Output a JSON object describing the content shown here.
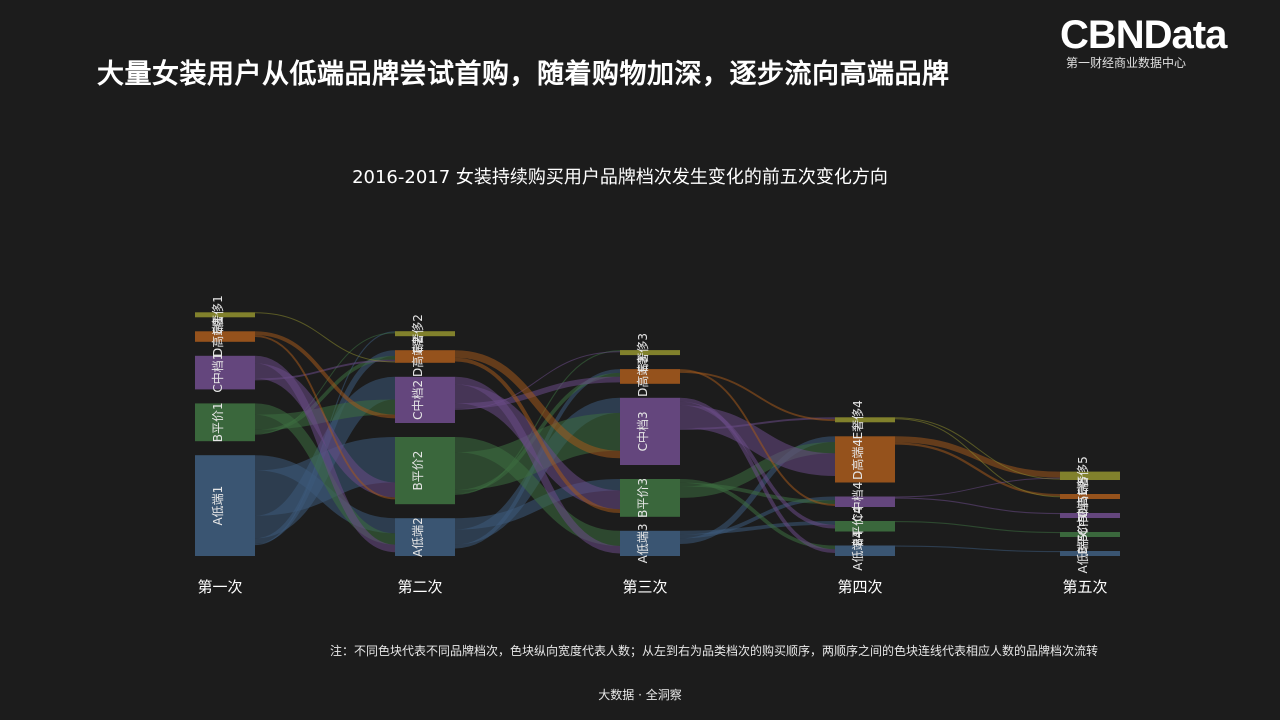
{
  "page": {
    "headline": "大量女装用户从低端品牌尝试首购，随着购物加深，逐步流向高端品牌",
    "logo_main": "CBNData",
    "logo_sub": "第一财经商业数据中心",
    "footnote": "注：不同色块代表不同品牌档次，色块纵向宽度代表人数；从左到右为品类档次的购买顺序，两顺序之间的色块连线代表相应人数的品牌档次流转",
    "footer": "大数据 · 全洞察"
  },
  "chart_data": {
    "type": "sankey",
    "title": "2016-2017 女装持续购买用户品牌档次发生变化的前五次变化方向",
    "stages": [
      "第一次",
      "第二次",
      "第三次",
      "第四次",
      "第五次"
    ],
    "tiers": [
      "A低端",
      "B平价",
      "C中档",
      "D高端",
      "E奢侈"
    ],
    "tier_colors": {
      "A低端": "#3d5a7a",
      "B平价": "#3d6e3f",
      "C中档": "#6a4a86",
      "D高端": "#a0571c",
      "E奢侈": "#8a8a2e"
    },
    "nodes": [
      {
        "label": "A低端1",
        "stage": 0,
        "tier": "A低端",
        "value": 24
      },
      {
        "label": "B平价1",
        "stage": 0,
        "tier": "B平价",
        "value": 9
      },
      {
        "label": "C中档1",
        "stage": 0,
        "tier": "C中档",
        "value": 8
      },
      {
        "label": "D高端1",
        "stage": 0,
        "tier": "D高端",
        "value": 2.5
      },
      {
        "label": "E奢侈1",
        "stage": 0,
        "tier": "E奢侈",
        "value": 0.3
      },
      {
        "label": "A低端2",
        "stage": 1,
        "tier": "A低端",
        "value": 9
      },
      {
        "label": "B平价2",
        "stage": 1,
        "tier": "B平价",
        "value": 16
      },
      {
        "label": "C中档2",
        "stage": 1,
        "tier": "C中档",
        "value": 11
      },
      {
        "label": "D高端2",
        "stage": 1,
        "tier": "D高端",
        "value": 3
      },
      {
        "label": "E奢侈2",
        "stage": 1,
        "tier": "E奢侈",
        "value": 0.5
      },
      {
        "label": "A低端3",
        "stage": 2,
        "tier": "A低端",
        "value": 6
      },
      {
        "label": "B平价3",
        "stage": 2,
        "tier": "B平价",
        "value": 9
      },
      {
        "label": "C中档3",
        "stage": 2,
        "tier": "C中档",
        "value": 16
      },
      {
        "label": "D高端3",
        "stage": 2,
        "tier": "D高端",
        "value": 3.5
      },
      {
        "label": "E奢侈3",
        "stage": 2,
        "tier": "E奢侈",
        "value": 0.5
      },
      {
        "label": "A低端4",
        "stage": 3,
        "tier": "A低端",
        "value": 2.5
      },
      {
        "label": "B平价4",
        "stage": 3,
        "tier": "B平价",
        "value": 2.5
      },
      {
        "label": "C中档4",
        "stage": 3,
        "tier": "C中档",
        "value": 2.5
      },
      {
        "label": "D高端4",
        "stage": 3,
        "tier": "D高端",
        "value": 11
      },
      {
        "label": "E奢侈4",
        "stage": 3,
        "tier": "E奢侈",
        "value": 1
      },
      {
        "label": "A低端5",
        "stage": 4,
        "tier": "A低端",
        "value": 0.4
      },
      {
        "label": "B平价5",
        "stage": 4,
        "tier": "B平价",
        "value": 0.4
      },
      {
        "label": "C中档5",
        "stage": 4,
        "tier": "C中档",
        "value": 0.4
      },
      {
        "label": "D高端5",
        "stage": 4,
        "tier": "D高端",
        "value": 0.8
      },
      {
        "label": "E奢侈5",
        "stage": 4,
        "tier": "E奢侈",
        "value": 2
      }
    ],
    "links": [
      {
        "source": "A低端1",
        "target": "A低端2",
        "value": 4
      },
      {
        "source": "A低端1",
        "target": "B平价2",
        "value": 12
      },
      {
        "source": "A低端1",
        "target": "C中档2",
        "value": 6
      },
      {
        "source": "A低端1",
        "target": "D高端2",
        "value": 1.5
      },
      {
        "source": "A低端1",
        "target": "E奢侈2",
        "value": 0.3
      },
      {
        "source": "B平价1",
        "target": "A低端2",
        "value": 3
      },
      {
        "source": "B平价1",
        "target": "C中档2",
        "value": 4
      },
      {
        "source": "B平价1",
        "target": "D高端2",
        "value": 1
      },
      {
        "source": "B平价1",
        "target": "E奢侈2",
        "value": 0.2
      },
      {
        "source": "C中档1",
        "target": "A低端2",
        "value": 2
      },
      {
        "source": "C中档1",
        "target": "B平价2",
        "value": 4
      },
      {
        "source": "C中档1",
        "target": "D高端2",
        "value": 0.5
      },
      {
        "source": "D高端1",
        "target": "C中档2",
        "value": 1
      },
      {
        "source": "D高端1",
        "target": "B平价2",
        "value": 0.5
      },
      {
        "source": "E奢侈1",
        "target": "D高端2",
        "value": 0.2
      },
      {
        "source": "A低端2",
        "target": "B平价3",
        "value": 3
      },
      {
        "source": "A低端2",
        "target": "C中档3",
        "value": 4
      },
      {
        "source": "A低端2",
        "target": "D高端3",
        "value": 1
      },
      {
        "source": "B平价2",
        "target": "A低端3",
        "value": 4
      },
      {
        "source": "B平价2",
        "target": "C中档3",
        "value": 10
      },
      {
        "source": "B平价2",
        "target": "D高端3",
        "value": 1
      },
      {
        "source": "B平价2",
        "target": "E奢侈3",
        "value": 0.3
      },
      {
        "source": "C中档2",
        "target": "A低端3",
        "value": 2
      },
      {
        "source": "C中档2",
        "target": "B平价3",
        "value": 5
      },
      {
        "source": "C中档2",
        "target": "D高端3",
        "value": 1.5
      },
      {
        "source": "C中档2",
        "target": "E奢侈3",
        "value": 0.2
      },
      {
        "source": "D高端2",
        "target": "C中档3",
        "value": 2
      },
      {
        "source": "D高端2",
        "target": "B平价3",
        "value": 1
      },
      {
        "source": "A低端3",
        "target": "B平价4",
        "value": 1
      },
      {
        "source": "A低端3",
        "target": "C中档4",
        "value": 1
      },
      {
        "source": "A低端3",
        "target": "D高端4",
        "value": 1.5
      },
      {
        "source": "B平价3",
        "target": "A低端4",
        "value": 1
      },
      {
        "source": "B平价3",
        "target": "C中档4",
        "value": 1
      },
      {
        "source": "B平价3",
        "target": "D高端4",
        "value": 3
      },
      {
        "source": "C中档3",
        "target": "A低端4",
        "value": 1
      },
      {
        "source": "C中档3",
        "target": "B平价4",
        "value": 1
      },
      {
        "source": "C中档3",
        "target": "D高端4",
        "value": 6
      },
      {
        "source": "C中档3",
        "target": "E奢侈4",
        "value": 0.5
      },
      {
        "source": "D高端3",
        "target": "C中档4",
        "value": 0.5
      },
      {
        "source": "D高端3",
        "target": "E奢侈4",
        "value": 0.5
      },
      {
        "source": "D高端4",
        "target": "E奢侈5",
        "value": 1.6
      },
      {
        "source": "D高端4",
        "target": "D高端5",
        "value": 0.6
      },
      {
        "source": "C中档4",
        "target": "E奢侈5",
        "value": 0.2
      },
      {
        "source": "C中档4",
        "target": "C中档5",
        "value": 0.3
      },
      {
        "source": "B平价4",
        "target": "B平价5",
        "value": 0.3
      },
      {
        "source": "A低端4",
        "target": "A低端5",
        "value": 0.3
      },
      {
        "source": "E奢侈4",
        "target": "E奢侈5",
        "value": 0.2
      },
      {
        "source": "E奢侈4",
        "target": "D高端5",
        "value": 0.2
      }
    ]
  }
}
